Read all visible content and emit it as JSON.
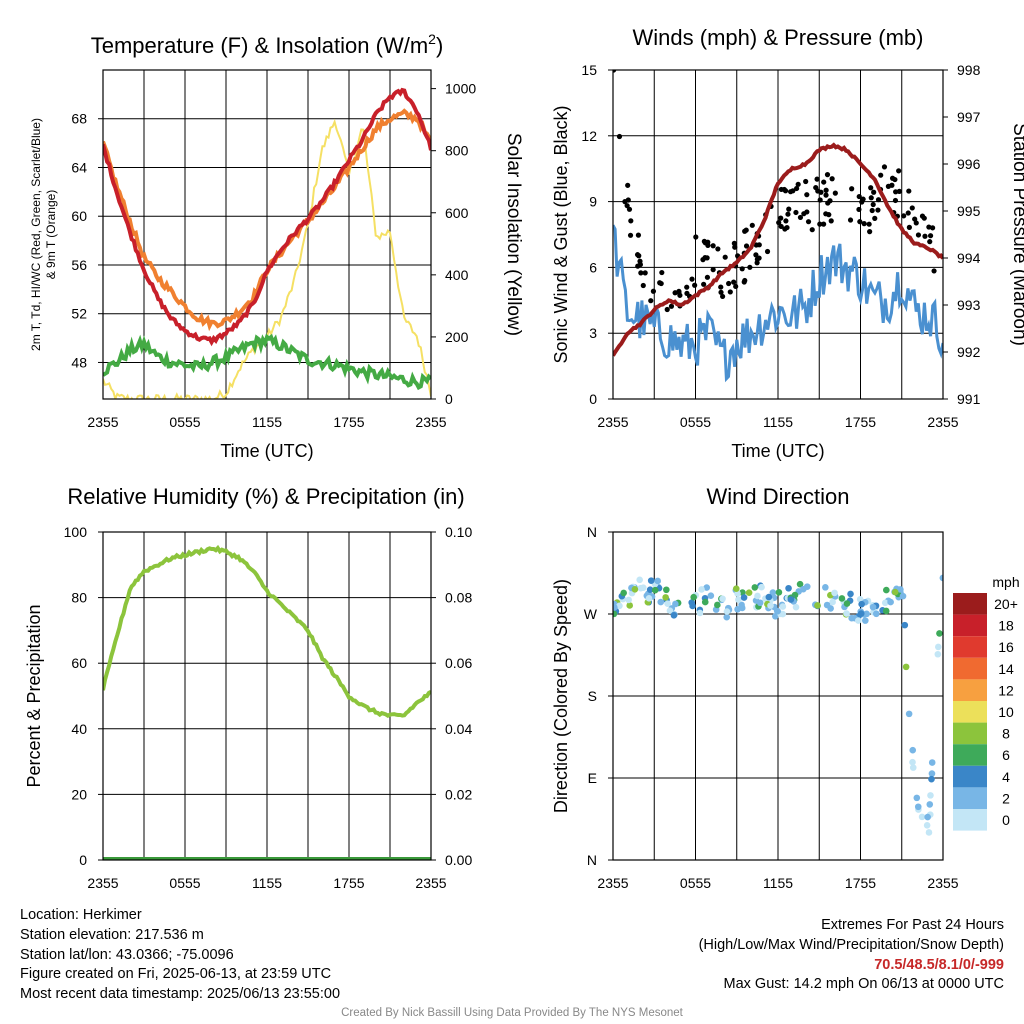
{
  "chart_data": [
    {
      "type": "line",
      "title": "Temperature (F) & Insolation (W/m²)",
      "xlabel": "Time (UTC)",
      "ylabel": "2m T, Td, HI/WC (Red, Green, Scarlet/Blue) & 9m T (Orange)",
      "ylabel_right": "Solar Insolation (Yellow)",
      "xticks": [
        "2355",
        "0555",
        "1155",
        "1755",
        "2355"
      ],
      "yticks_left": [
        48,
        52,
        56,
        60,
        64,
        68
      ],
      "yticks_right": [
        0,
        200,
        400,
        600,
        800,
        1000
      ],
      "ylim": [
        45,
        72
      ],
      "ylim_right": [
        0,
        1060
      ],
      "x": [
        0,
        1,
        2,
        3,
        4,
        5,
        6,
        7,
        8,
        9,
        10,
        11,
        12,
        13,
        14,
        15,
        16,
        17,
        18,
        19,
        20,
        21,
        22,
        23,
        24
      ],
      "series": [
        {
          "name": "2m T",
          "axis": "left",
          "color": "#c8202a",
          "values": [
            65.8,
            62.0,
            58.6,
            55.6,
            53.3,
            51.6,
            50.6,
            50.0,
            49.8,
            50.4,
            51.3,
            52.8,
            55.5,
            57.2,
            58.6,
            59.8,
            61.2,
            62.8,
            64.6,
            66.3,
            68.4,
            69.8,
            70.3,
            68.6,
            65.6
          ]
        },
        {
          "name": "9m T",
          "axis": "left",
          "color": "#f08030",
          "values": [
            66.0,
            62.5,
            59.5,
            56.6,
            55.0,
            53.8,
            52.6,
            51.6,
            51.2,
            51.4,
            52.2,
            53.4,
            55.6,
            57.0,
            58.4,
            59.6,
            61.0,
            62.4,
            64.0,
            65.6,
            67.2,
            68.0,
            68.4,
            68.0,
            66.0
          ]
        },
        {
          "name": "Td",
          "axis": "left",
          "color": "#44aa44",
          "values": [
            47.3,
            48.0,
            49.0,
            49.5,
            48.5,
            48.0,
            47.8,
            47.6,
            48.0,
            48.4,
            49.0,
            49.6,
            49.8,
            49.4,
            48.8,
            48.2,
            48.0,
            47.8,
            47.5,
            47.2,
            47.0,
            46.8,
            46.6,
            46.4,
            46.4
          ]
        },
        {
          "name": "Solar Insolation",
          "axis": "right",
          "color": "#f5e064",
          "values": [
            60,
            5,
            0,
            0,
            0,
            0,
            0,
            0,
            0,
            20,
            100,
            160,
            200,
            260,
            380,
            560,
            800,
            900,
            720,
            880,
            520,
            540,
            260,
            200,
            20
          ]
        }
      ]
    },
    {
      "type": "scatter",
      "title": "Winds (mph) & Pressure (mb)",
      "xlabel": "Time (UTC)",
      "ylabel": "Sonic Wind & Gust (Blue, Black)",
      "ylabel_right": "Station Pressure (Maroon)",
      "xticks": [
        "2355",
        "0555",
        "1155",
        "1755",
        "2355"
      ],
      "yticks_left": [
        0,
        3,
        6,
        9,
        12,
        15
      ],
      "yticks_right": [
        991,
        992,
        993,
        994,
        995,
        996,
        997,
        998
      ],
      "ylim": [
        0,
        15
      ],
      "ylim_right": [
        991,
        998
      ],
      "x": [
        0,
        1,
        2,
        3,
        4,
        5,
        6,
        7,
        8,
        9,
        10,
        11,
        12,
        13,
        14,
        15,
        16,
        17,
        18,
        19,
        20,
        21,
        22,
        23,
        24
      ],
      "series": [
        {
          "name": "Sonic Wind",
          "axis": "left",
          "color": "#4a90d0",
          "values": [
            7.5,
            4.0,
            3.6,
            3.2,
            2.8,
            2.4,
            2.5,
            3.0,
            1.8,
            2.6,
            3.0,
            3.6,
            4.0,
            3.8,
            4.2,
            5.6,
            6.4,
            6.0,
            5.5,
            4.5,
            4.5,
            5.6,
            4.0,
            3.8,
            3.0
          ]
        },
        {
          "name": "Gust",
          "axis": "left",
          "color": "#000000",
          "values": [
            14.2,
            9.0,
            6.0,
            5.0,
            5.2,
            5.0,
            6.2,
            6.0,
            5.8,
            6.2,
            6.8,
            7.5,
            9.0,
            8.5,
            8.8,
            9.0,
            9.2,
            8.6,
            8.8,
            8.4,
            10.0,
            9.2,
            7.8,
            7.0,
            5.8
          ]
        },
        {
          "name": "Station Pressure",
          "axis": "right",
          "color": "#9b1c1c",
          "values": [
            991.9,
            992.4,
            992.6,
            992.9,
            993.1,
            993.0,
            993.2,
            993.4,
            993.7,
            993.9,
            994.2,
            994.8,
            995.6,
            995.9,
            996.0,
            996.3,
            996.4,
            996.3,
            996.0,
            995.7,
            995.1,
            994.6,
            994.3,
            994.2,
            994.0
          ]
        }
      ]
    },
    {
      "type": "line",
      "title": "Relative Humidity (%) & Precipitation (in)",
      "xlabel": "",
      "ylabel": "Percent & Precipitation",
      "xticks": [
        "2355",
        "0555",
        "1155",
        "1755",
        "2355"
      ],
      "yticks_left": [
        0,
        20,
        40,
        60,
        80,
        100
      ],
      "yticks_right": [
        "0.00",
        "0.02",
        "0.04",
        "0.06",
        "0.08",
        "0.10"
      ],
      "ylim": [
        0,
        100
      ],
      "ylim_right": [
        0,
        0.1
      ],
      "x": [
        0,
        1,
        2,
        3,
        4,
        5,
        6,
        7,
        8,
        9,
        10,
        11,
        12,
        13,
        14,
        15,
        16,
        17,
        18,
        19,
        20,
        21,
        22,
        23,
        24
      ],
      "series": [
        {
          "name": "Relative Humidity",
          "axis": "left",
          "color": "#8cc43c",
          "values": [
            52,
            68,
            83,
            88,
            90,
            92,
            93,
            94,
            95,
            94,
            92,
            88,
            82,
            78,
            74,
            70,
            62,
            56,
            50,
            47,
            45,
            44,
            44,
            48,
            51
          ]
        },
        {
          "name": "Precipitation",
          "axis": "right",
          "color": "#3a9a3a",
          "values": [
            0,
            0,
            0,
            0,
            0,
            0,
            0,
            0,
            0,
            0,
            0,
            0,
            0,
            0,
            0,
            0,
            0,
            0,
            0,
            0,
            0,
            0,
            0,
            0,
            0
          ]
        }
      ]
    },
    {
      "type": "scatter",
      "title": "Wind Direction",
      "xlabel": "",
      "ylabel": "Direction (Colored By Speed)",
      "xticks": [
        "2355",
        "0555",
        "1155",
        "1755",
        "2355"
      ],
      "yticks_left": [
        "N",
        "E",
        "S",
        "W",
        "N"
      ],
      "ylim": [
        0,
        360
      ],
      "x": [
        0,
        1,
        2,
        3,
        4,
        5,
        6,
        7,
        8,
        9,
        10,
        11,
        12,
        13,
        14,
        15,
        16,
        17,
        18,
        19,
        20,
        21,
        22,
        23,
        24
      ],
      "series": [
        {
          "name": "Direction",
          "axis": "left",
          "values": [
            282,
            288,
            298,
            296,
            285,
            275,
            280,
            288,
            276,
            285,
            290,
            286,
            280,
            288,
            292,
            290,
            286,
            280,
            275,
            270,
            285,
            300,
            60,
            40,
            325
          ]
        }
      ],
      "legend": {
        "title": "mph",
        "labels": [
          "20+",
          "18",
          "16",
          "14",
          "12",
          "10",
          "8",
          "6",
          "4",
          "2",
          "0"
        ],
        "colors": [
          "#9b1c1c",
          "#c8202a",
          "#e03a2e",
          "#f06a30",
          "#f7a040",
          "#ece05a",
          "#8cc43c",
          "#3eaa5a",
          "#3a86c8",
          "#78b6e6",
          "#c3e6f6"
        ],
        "placement": "right"
      }
    }
  ],
  "info": {
    "location": "Location: Herkimer",
    "elevation": "Station elevation: 217.536 m",
    "latlon": "Station lat/lon: 43.0366; -75.0096",
    "created": "Figure created on Fri, 2025-06-13, at 23:59 UTC",
    "recent": "Most recent data timestamp: 2025/06/13 23:55:00",
    "extremes_title": "Extremes For Past 24 Hours",
    "extremes_sub": "(High/Low/Max Wind/Precipitation/Snow Depth)",
    "extremes_values": "70.5/48.5/8.1/0/-999",
    "max_gust": "Max Gust: 14.2 mph On 06/13 at 0000 UTC",
    "credit": "Created By Nick Bassill Using Data Provided By The NYS Mesonet"
  }
}
